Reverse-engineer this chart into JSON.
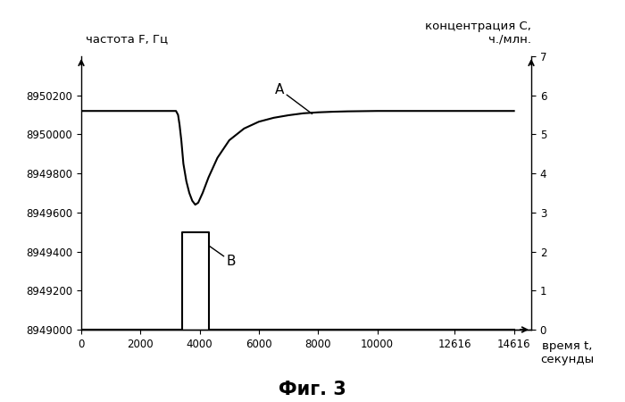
{
  "title": "Фиг. 3",
  "ylabel_left": "частота F, Гц",
  "ylabel_right": "концентрация C,\nч./млн.",
  "xlabel": "время t,\nсекунды",
  "ylim_left": [
    8949000,
    8950400
  ],
  "ylim_right": [
    0,
    7
  ],
  "xlim": [
    0,
    15200
  ],
  "xticks": [
    0,
    2000,
    4000,
    6000,
    8000,
    10000,
    12616,
    14616
  ],
  "yticks_left": [
    8949000,
    8949200,
    8949400,
    8949600,
    8949800,
    8950000,
    8950200
  ],
  "yticks_right": [
    0,
    1,
    2,
    3,
    4,
    5,
    6,
    7
  ],
  "curve_A_x": [
    0,
    3200,
    3270,
    3320,
    3380,
    3450,
    3550,
    3650,
    3750,
    3850,
    3950,
    4100,
    4300,
    4600,
    5000,
    5500,
    6000,
    6500,
    7000,
    7500,
    8000,
    8500,
    9000,
    10000,
    12616,
    14616
  ],
  "curve_A_y": [
    8950120,
    8950120,
    8950100,
    8950050,
    8949970,
    8949850,
    8949760,
    8949700,
    8949660,
    8949640,
    8949650,
    8949700,
    8949780,
    8949880,
    8949970,
    8950030,
    8950065,
    8950085,
    8950098,
    8950108,
    8950113,
    8950116,
    8950118,
    8950120,
    8950120,
    8950120
  ],
  "curve_B_x": [
    0,
    3400,
    3400,
    4300,
    4300,
    14616
  ],
  "curve_B_y": [
    8949000,
    8949000,
    8949500,
    8949500,
    8949000,
    8949000
  ],
  "background_color": "#ffffff",
  "line_color": "#000000",
  "fontsize_title": 15,
  "fontsize_ticks": 8.5,
  "fontsize_labels": 9.5
}
